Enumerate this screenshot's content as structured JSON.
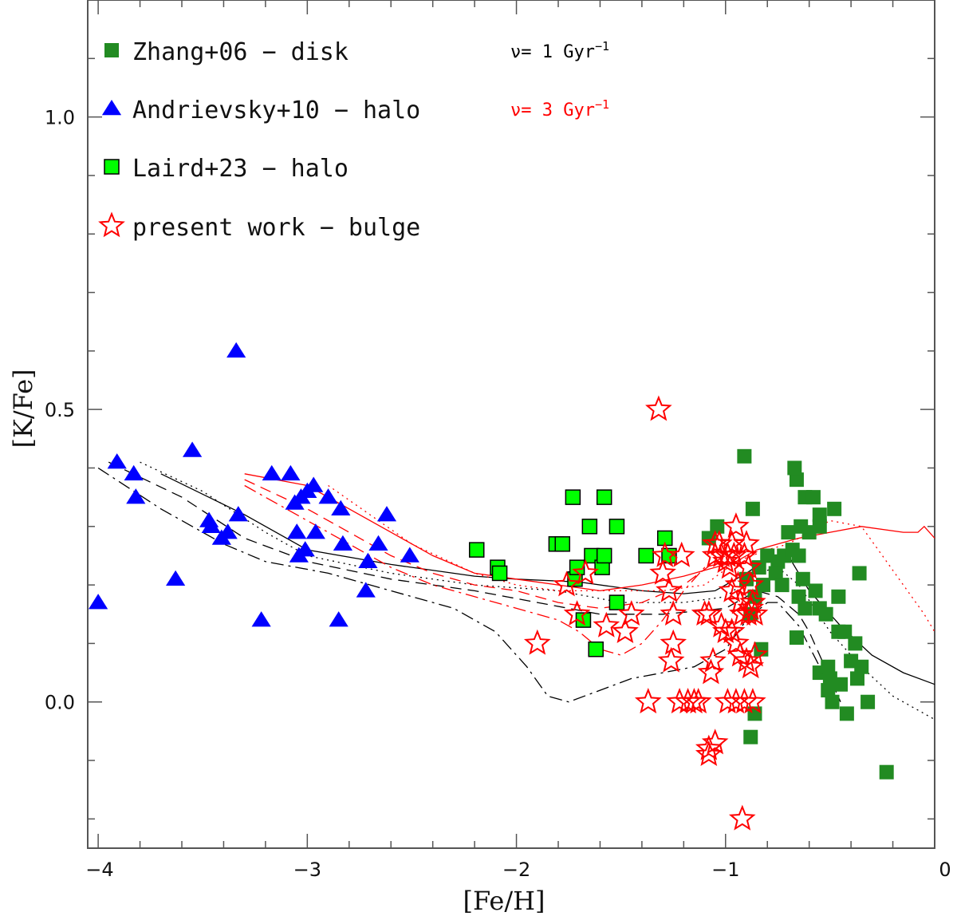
{
  "chart_data": {
    "type": "scatter",
    "xlabel": "[Fe/H]",
    "ylabel": "[K/Fe]",
    "xlim": [
      -4.05,
      0
    ],
    "ylim": [
      -0.25,
      1.2
    ],
    "x_ticks": [
      -4,
      -3,
      -2,
      -1,
      0
    ],
    "x_tick_labels": [
      "−4",
      "−3",
      "−2",
      "−1",
      "0"
    ],
    "y_ticks": [
      0.0,
      0.5,
      1.0
    ],
    "y_tick_labels": [
      "0.0",
      "0.5",
      "1.0"
    ],
    "legend": [
      {
        "series": "zhang",
        "label": "Zhang+06 − disk"
      },
      {
        "series": "andrievsky",
        "label": "Andrievsky+10 − halo"
      },
      {
        "series": "laird",
        "label": "Laird+23 − halo"
      },
      {
        "series": "present",
        "label": "present work − bulge"
      }
    ],
    "rate_labels": [
      {
        "prefix": "ν= 1 Gyr",
        "sup": "−1",
        "color": "#000000"
      },
      {
        "prefix": "ν= 3 Gyr",
        "sup": "−1",
        "color": "#ff0000"
      }
    ],
    "series": [
      {
        "name": "zhang",
        "marker": "square-filled",
        "color": "#228b22",
        "x": [
          -0.91,
          -0.87,
          -1.04,
          -1.08,
          -0.66,
          -0.67,
          -0.62,
          -0.58,
          -0.55,
          -0.48,
          -0.7,
          -0.64,
          -0.6,
          -0.55,
          -0.75,
          -0.8,
          -0.72,
          -0.68,
          -0.65,
          -0.76,
          -0.82,
          -0.86,
          -0.73,
          -0.63,
          -0.57,
          -0.46,
          -0.36,
          -0.9,
          -0.84,
          -0.88,
          -0.65,
          -0.55,
          -0.52,
          -0.46,
          -0.38,
          -0.66,
          -0.55,
          -0.43,
          -0.35,
          -0.62,
          -0.51,
          -0.83,
          -0.5,
          -0.4,
          -0.51,
          -0.49,
          -0.45,
          -0.42,
          -0.37,
          -0.86,
          -0.88,
          -0.32,
          -0.23
        ],
        "y": [
          0.42,
          0.33,
          0.3,
          0.28,
          0.38,
          0.4,
          0.35,
          0.35,
          0.32,
          0.33,
          0.29,
          0.3,
          0.29,
          0.3,
          0.24,
          0.25,
          0.25,
          0.26,
          0.25,
          0.22,
          0.2,
          0.18,
          0.2,
          0.21,
          0.19,
          0.18,
          0.22,
          0.21,
          0.23,
          0.15,
          0.18,
          0.16,
          0.15,
          0.12,
          0.1,
          0.11,
          0.05,
          0.12,
          0.06,
          0.16,
          0.06,
          0.09,
          0.04,
          0.07,
          0.02,
          0.0,
          0.03,
          -0.02,
          0.04,
          -0.02,
          -0.06,
          0.0,
          -0.12
        ]
      },
      {
        "name": "andrievsky",
        "marker": "triangle-filled",
        "color": "#0000ff",
        "x": [
          -4.0,
          -3.91,
          -3.83,
          -3.82,
          -3.63,
          -3.55,
          -3.47,
          -3.46,
          -3.41,
          -3.38,
          -3.34,
          -3.33,
          -3.22,
          -3.17,
          -3.08,
          -3.06,
          -3.05,
          -3.04,
          -3.03,
          -3.01,
          -3.0,
          -2.97,
          -2.96,
          -2.9,
          -2.85,
          -2.84,
          -2.83,
          -2.72,
          -2.71,
          -2.66,
          -2.62,
          -2.51
        ],
        "y": [
          0.17,
          0.41,
          0.39,
          0.35,
          0.21,
          0.43,
          0.31,
          0.3,
          0.28,
          0.29,
          0.6,
          0.32,
          0.14,
          0.39,
          0.39,
          0.34,
          0.29,
          0.25,
          0.35,
          0.26,
          0.36,
          0.37,
          0.29,
          0.35,
          0.14,
          0.33,
          0.27,
          0.19,
          0.24,
          0.27,
          0.32,
          0.25
        ]
      },
      {
        "name": "laird",
        "marker": "square-outlined",
        "color": "#00ff00",
        "edgecolor": "#000000",
        "x": [
          -2.19,
          -2.09,
          -2.08,
          -1.81,
          -1.78,
          -1.73,
          -1.72,
          -1.71,
          -1.68,
          -1.65,
          -1.64,
          -1.62,
          -1.59,
          -1.58,
          -1.58,
          -1.52,
          -1.52,
          -1.38,
          -1.29,
          -1.27
        ],
        "y": [
          0.26,
          0.23,
          0.22,
          0.27,
          0.27,
          0.35,
          0.21,
          0.23,
          0.14,
          0.3,
          0.25,
          0.09,
          0.23,
          0.25,
          0.35,
          0.17,
          0.3,
          0.25,
          0.28,
          0.25
        ]
      },
      {
        "name": "present",
        "marker": "star-open",
        "color": "#ff0000",
        "x": [
          -1.32,
          -1.9,
          -1.76,
          -1.71,
          -1.67,
          -1.57,
          -1.48,
          -1.45,
          -1.37,
          -1.3,
          -1.29,
          -1.27,
          -1.26,
          -1.25,
          -1.25,
          -1.22,
          -1.21,
          -1.18,
          -1.15,
          -1.13,
          -1.1,
          -1.07,
          -1.06,
          -1.05,
          -1.03,
          -1.02,
          -1.0,
          -0.99,
          -0.98,
          -0.97,
          -0.96,
          -0.95,
          -0.94,
          -0.93,
          -0.92,
          -0.91,
          -0.9,
          -0.89,
          -0.88,
          -0.87,
          -0.86,
          -0.86,
          -1.02,
          -0.97,
          -0.95,
          -0.93,
          -0.9,
          -0.88,
          -1.08,
          -0.99,
          -0.95,
          -0.91,
          -0.87,
          -1.0,
          -1.05,
          -1.08,
          -0.97,
          -0.93,
          -0.89,
          -0.88,
          -1.08,
          -1.05,
          -0.92
        ],
        "y": [
          0.5,
          0.1,
          0.2,
          0.15,
          0.22,
          0.13,
          0.12,
          0.15,
          0.0,
          0.22,
          0.25,
          0.19,
          0.07,
          0.1,
          0.15,
          0.0,
          0.25,
          0.0,
          0.0,
          0.0,
          0.15,
          0.05,
          0.07,
          0.27,
          0.27,
          0.25,
          0.24,
          0.25,
          0.23,
          0.27,
          0.25,
          0.3,
          0.2,
          0.17,
          0.15,
          0.25,
          0.27,
          0.23,
          0.2,
          0.17,
          0.15,
          0.08,
          0.13,
          0.12,
          0.1,
          0.08,
          0.07,
          0.06,
          0.15,
          0.0,
          0.0,
          0.0,
          0.0,
          0.12,
          0.25,
          -0.08,
          0.19,
          0.17,
          0.15,
          0.16,
          -0.09,
          -0.07,
          -0.2
        ]
      }
    ],
    "model_curves": [
      {
        "rate": "1 Gyr−1",
        "color": "#000000",
        "style": "solid",
        "points": [
          [
            -3.7,
            0.39
          ],
          [
            -3.3,
            0.32
          ],
          [
            -3.0,
            0.26
          ],
          [
            -2.6,
            0.235
          ],
          [
            -2.2,
            0.215
          ],
          [
            -2.0,
            0.21
          ],
          [
            -1.7,
            0.205
          ],
          [
            -1.4,
            0.19
          ],
          [
            -1.2,
            0.185
          ],
          [
            -1.05,
            0.19
          ],
          [
            -0.9,
            0.22
          ],
          [
            -0.78,
            0.25
          ],
          [
            -0.7,
            0.25
          ],
          [
            -0.6,
            0.19
          ],
          [
            -0.45,
            0.13
          ],
          [
            -0.3,
            0.08
          ],
          [
            -0.15,
            0.05
          ],
          [
            0.0,
            0.03
          ]
        ]
      },
      {
        "rate": "1 Gyr−1",
        "color": "#000000",
        "style": "dotted",
        "points": [
          [
            -3.8,
            0.41
          ],
          [
            -3.5,
            0.36
          ],
          [
            -3.2,
            0.29
          ],
          [
            -3.0,
            0.25
          ],
          [
            -2.6,
            0.22
          ],
          [
            -2.2,
            0.2
          ],
          [
            -1.8,
            0.19
          ],
          [
            -1.5,
            0.17
          ],
          [
            -1.2,
            0.17
          ],
          [
            -1.0,
            0.18
          ],
          [
            -0.85,
            0.22
          ],
          [
            -0.75,
            0.23
          ],
          [
            -0.65,
            0.2
          ],
          [
            -0.5,
            0.12
          ],
          [
            -0.35,
            0.06
          ],
          [
            -0.2,
            0.01
          ],
          [
            0.0,
            -0.03
          ]
        ]
      },
      {
        "rate": "1 Gyr−1",
        "color": "#000000",
        "style": "dashed",
        "points": [
          [
            -3.95,
            0.41
          ],
          [
            -3.6,
            0.35
          ],
          [
            -3.3,
            0.28
          ],
          [
            -3.0,
            0.24
          ],
          [
            -2.6,
            0.21
          ],
          [
            -2.2,
            0.19
          ],
          [
            -1.9,
            0.17
          ],
          [
            -1.6,
            0.15
          ],
          [
            -1.3,
            0.15
          ],
          [
            -1.0,
            0.16
          ],
          [
            -0.85,
            0.19
          ],
          [
            -0.75,
            0.18
          ],
          [
            -0.65,
            0.15
          ],
          [
            -0.6,
            0.12
          ],
          [
            -0.55,
            0.08
          ],
          [
            -0.5,
            0.04
          ],
          [
            -0.45,
            0.0
          ]
        ]
      },
      {
        "rate": "1 Gyr−1",
        "color": "#000000",
        "style": "dashdot",
        "points": [
          [
            -4.0,
            0.4
          ],
          [
            -3.7,
            0.33
          ],
          [
            -3.4,
            0.27
          ],
          [
            -3.2,
            0.24
          ],
          [
            -2.9,
            0.22
          ],
          [
            -2.6,
            0.19
          ],
          [
            -2.3,
            0.16
          ],
          [
            -2.1,
            0.12
          ],
          [
            -1.95,
            0.06
          ],
          [
            -1.85,
            0.01
          ],
          [
            -1.75,
            0.0
          ],
          [
            -1.6,
            0.02
          ],
          [
            -1.45,
            0.04
          ],
          [
            -1.3,
            0.05
          ],
          [
            -1.15,
            0.06
          ],
          [
            -1.0,
            0.09
          ],
          [
            -0.9,
            0.14
          ],
          [
            -0.8,
            0.17
          ],
          [
            -0.75,
            0.17
          ],
          [
            -0.65,
            0.13
          ],
          [
            -0.55,
            0.06
          ],
          [
            -0.48,
            0.0
          ]
        ]
      },
      {
        "rate": "3 Gyr−1",
        "color": "#ff0000",
        "style": "solid",
        "points": [
          [
            -3.3,
            0.39
          ],
          [
            -3.0,
            0.37
          ],
          [
            -2.8,
            0.33
          ],
          [
            -2.6,
            0.29
          ],
          [
            -2.4,
            0.25
          ],
          [
            -2.2,
            0.22
          ],
          [
            -2.0,
            0.21
          ],
          [
            -1.8,
            0.2
          ],
          [
            -1.6,
            0.19
          ],
          [
            -1.4,
            0.2
          ],
          [
            -1.2,
            0.215
          ],
          [
            -1.05,
            0.23
          ],
          [
            -0.95,
            0.24
          ],
          [
            -0.85,
            0.26
          ],
          [
            -0.75,
            0.27
          ],
          [
            -0.65,
            0.28
          ],
          [
            -0.5,
            0.29
          ],
          [
            -0.35,
            0.3
          ],
          [
            -0.15,
            0.29
          ],
          [
            -0.08,
            0.29
          ],
          [
            -0.05,
            0.3
          ],
          [
            0.0,
            0.28
          ]
        ]
      },
      {
        "rate": "3 Gyr−1",
        "color": "#ff0000",
        "style": "dotted",
        "points": [
          [
            -2.9,
            0.37
          ],
          [
            -2.7,
            0.32
          ],
          [
            -2.5,
            0.27
          ],
          [
            -2.2,
            0.22
          ],
          [
            -2.0,
            0.2
          ],
          [
            -1.8,
            0.19
          ],
          [
            -1.5,
            0.19
          ],
          [
            -1.3,
            0.19
          ],
          [
            -1.1,
            0.2
          ],
          [
            -0.95,
            0.24
          ],
          [
            -0.8,
            0.26
          ],
          [
            -0.7,
            0.27
          ],
          [
            -0.5,
            0.31
          ],
          [
            -0.35,
            0.3
          ],
          [
            -0.25,
            0.25
          ],
          [
            -0.15,
            0.2
          ],
          [
            -0.05,
            0.15
          ],
          [
            0.0,
            0.12
          ]
        ]
      },
      {
        "rate": "3 Gyr−1",
        "color": "#ff0000",
        "style": "dashed",
        "points": [
          [
            -3.3,
            0.38
          ],
          [
            -3.0,
            0.33
          ],
          [
            -2.8,
            0.29
          ],
          [
            -2.6,
            0.25
          ],
          [
            -2.4,
            0.22
          ],
          [
            -2.2,
            0.2
          ],
          [
            -2.0,
            0.19
          ],
          [
            -1.8,
            0.17
          ],
          [
            -1.6,
            0.16
          ],
          [
            -1.4,
            0.17
          ],
          [
            -1.2,
            0.2
          ],
          [
            -1.05,
            0.24
          ],
          [
            -0.95,
            0.26
          ]
        ]
      },
      {
        "rate": "3 Gyr−1",
        "color": "#ff0000",
        "style": "dashdot",
        "points": [
          [
            -3.3,
            0.37
          ],
          [
            -3.0,
            0.31
          ],
          [
            -2.8,
            0.27
          ],
          [
            -2.6,
            0.23
          ],
          [
            -2.4,
            0.2
          ],
          [
            -2.2,
            0.18
          ],
          [
            -2.0,
            0.16
          ],
          [
            -1.8,
            0.14
          ],
          [
            -1.7,
            0.12
          ],
          [
            -1.6,
            0.09
          ],
          [
            -1.5,
            0.08
          ],
          [
            -1.4,
            0.1
          ],
          [
            -1.3,
            0.14
          ],
          [
            -1.2,
            0.19
          ],
          [
            -1.1,
            0.23
          ],
          [
            -1.0,
            0.24
          ]
        ]
      }
    ]
  }
}
